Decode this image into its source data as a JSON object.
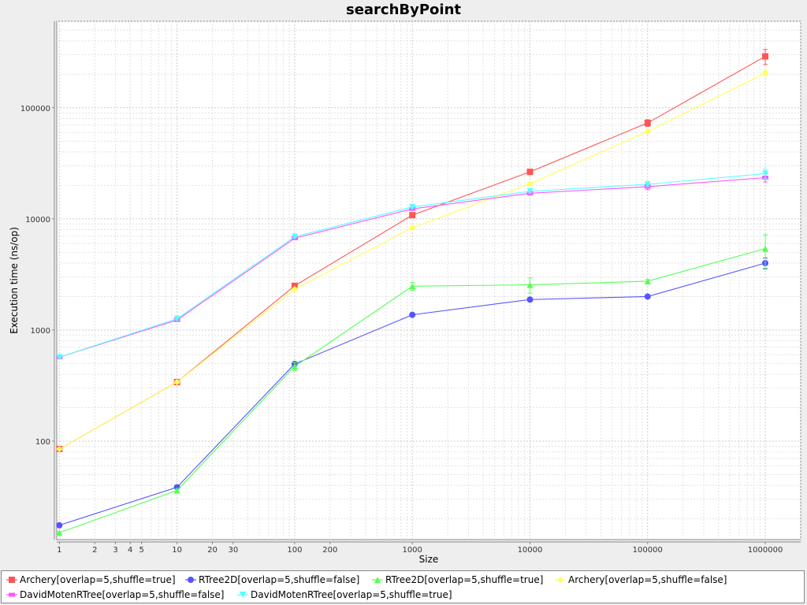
{
  "chart_data": {
    "type": "line",
    "title": "searchByPoint",
    "xlabel": "Size",
    "ylabel": "Execution time (ns/op)",
    "x_scale": "log",
    "y_scale": "log",
    "xlim": [
      0.95,
      2000000
    ],
    "ylim": [
      13,
      600000
    ],
    "grid": true,
    "legend_position": "bottom",
    "x_tick_labels": [
      "1",
      "2",
      "3",
      "4",
      "5",
      "10",
      "20",
      "30",
      "100",
      "200",
      "1000",
      "10000",
      "100000",
      "1000000"
    ],
    "y_tick_labels": [
      "100",
      "1000",
      "10000",
      "100000"
    ],
    "x": [
      1,
      10,
      100,
      1000,
      10000,
      100000,
      1000000
    ],
    "series": [
      {
        "name": "Archery[overlap=5,shuffle=true]",
        "color": "#ff5555",
        "marker": "square",
        "values": [
          85,
          340,
          2500,
          10800,
          26500,
          73000,
          290000
        ],
        "error": [
          3,
          8,
          60,
          300,
          1500,
          5000,
          45000
        ]
      },
      {
        "name": "RTree2D[overlap=5,shuffle=false]",
        "color": "#5555ff",
        "marker": "circle",
        "values": [
          17.5,
          38.5,
          495,
          1370,
          1880,
          2000,
          4000
        ],
        "error": [
          0.3,
          1,
          20,
          30,
          80,
          50,
          450
        ]
      },
      {
        "name": "RTree2D[overlap=5,shuffle=true]",
        "color": "#55ff55",
        "marker": "triangle-up",
        "values": [
          15,
          36,
          470,
          2480,
          2550,
          2750,
          5400
        ],
        "error": [
          0.3,
          1,
          40,
          200,
          400,
          100,
          1800
        ]
      },
      {
        "name": "Archery[overlap=5,shuffle=false]",
        "color": "#ffff55",
        "marker": "diamond",
        "values": [
          85,
          340,
          2330,
          8300,
          20700,
          61000,
          205000
        ],
        "error": [
          2,
          8,
          60,
          300,
          800,
          2500,
          10000
        ]
      },
      {
        "name": "DavidMotenRTree[overlap=5,shuffle=false]",
        "color": "#ff55ff",
        "marker": "square-h",
        "values": [
          570,
          1230,
          6700,
          12300,
          17000,
          19500,
          23500
        ],
        "error": [
          10,
          30,
          100,
          300,
          600,
          1200,
          2000
        ]
      },
      {
        "name": "DavidMotenRTree[overlap=5,shuffle=true]",
        "color": "#55ffff",
        "marker": "triangle-down",
        "values": [
          570,
          1260,
          6900,
          12800,
          17700,
          20500,
          25500
        ],
        "error": [
          10,
          30,
          100,
          300,
          600,
          1000,
          2500
        ]
      }
    ]
  }
}
